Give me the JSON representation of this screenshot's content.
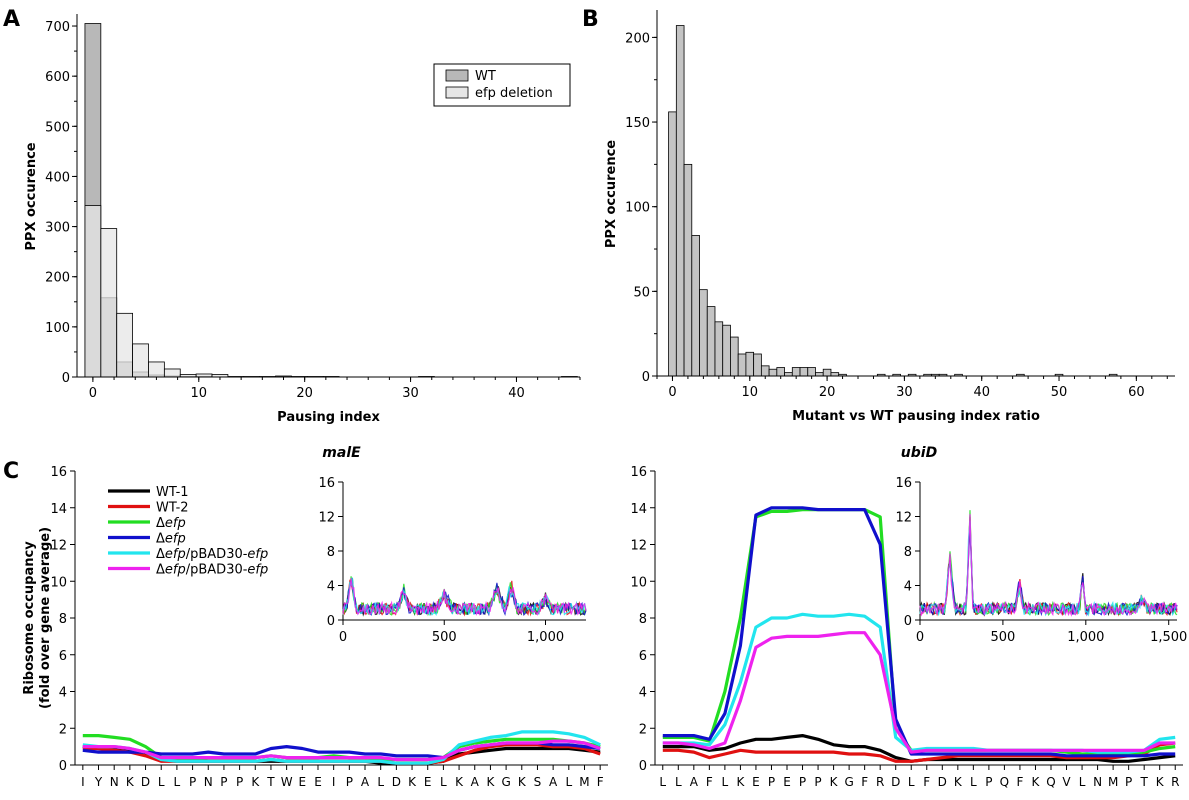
{
  "panel_labels": {
    "a": "A",
    "b": "B",
    "c": "C"
  },
  "chart_data": [
    {
      "id": "A",
      "type": "bar",
      "xlabel": "Pausing index",
      "ylabel": "PPX occurence",
      "xlim": [
        -1.5,
        46
      ],
      "ylim": [
        0,
        720
      ],
      "xticks": [
        0,
        10,
        20,
        30,
        40
      ],
      "yticks": [
        0,
        100,
        200,
        300,
        400,
        500,
        600,
        700
      ],
      "legend_position": "top-right",
      "bin_width": 1.5,
      "series": [
        {
          "name": "WT",
          "color": "#b8b8b8",
          "bins": [
            [
              -0.75,
              705
            ],
            [
              0.75,
              158
            ],
            [
              2.25,
              30
            ],
            [
              3.75,
              10
            ],
            [
              5.25,
              4
            ],
            [
              6.75,
              2
            ],
            [
              8.25,
              1
            ],
            [
              9.75,
              1
            ]
          ]
        },
        {
          "name": "efp deletion",
          "color": "#e6e6e6",
          "bins": [
            [
              -0.75,
              342
            ],
            [
              0.75,
              296
            ],
            [
              2.25,
              127
            ],
            [
              3.75,
              66
            ],
            [
              5.25,
              30
            ],
            [
              6.75,
              16
            ],
            [
              8.25,
              5
            ],
            [
              9.75,
              6
            ],
            [
              11.25,
              5
            ],
            [
              12.75,
              1
            ],
            [
              14.25,
              1
            ],
            [
              15.75,
              1
            ],
            [
              17.25,
              2
            ],
            [
              18.75,
              1
            ],
            [
              20.25,
              1
            ],
            [
              21.75,
              1
            ],
            [
              30.75,
              1
            ],
            [
              44.25,
              1
            ]
          ]
        }
      ]
    },
    {
      "id": "B",
      "type": "bar",
      "xlabel": "Mutant vs WT pausing index ratio",
      "ylabel": "PPX occurence",
      "xlim": [
        -2,
        65
      ],
      "ylim": [
        0,
        215
      ],
      "xticks": [
        0,
        10,
        20,
        30,
        40,
        50,
        60
      ],
      "yticks": [
        0,
        50,
        100,
        150,
        200
      ],
      "bin_width": 1,
      "series": [
        {
          "name": "",
          "color": "#c4c4c4",
          "bins": [
            [
              -0.5,
              156
            ],
            [
              0.5,
              207
            ],
            [
              1.5,
              125
            ],
            [
              2.5,
              83
            ],
            [
              3.5,
              51
            ],
            [
              4.5,
              41
            ],
            [
              5.5,
              32
            ],
            [
              6.5,
              30
            ],
            [
              7.5,
              23
            ],
            [
              8.5,
              13
            ],
            [
              9.5,
              14
            ],
            [
              10.5,
              13
            ],
            [
              11.5,
              6
            ],
            [
              12.5,
              4
            ],
            [
              13.5,
              5
            ],
            [
              14.5,
              2
            ],
            [
              15.5,
              5
            ],
            [
              16.5,
              5
            ],
            [
              17.5,
              5
            ],
            [
              18.5,
              2
            ],
            [
              19.5,
              4
            ],
            [
              20.5,
              2
            ],
            [
              21.5,
              1
            ],
            [
              26.5,
              1
            ],
            [
              28.5,
              1
            ],
            [
              30.5,
              1
            ],
            [
              32.5,
              1
            ],
            [
              33.5,
              1
            ],
            [
              34.5,
              1
            ],
            [
              36.5,
              1
            ],
            [
              44.5,
              1
            ],
            [
              49.5,
              1
            ],
            [
              56.5,
              1
            ]
          ]
        }
      ]
    },
    {
      "id": "C-malE",
      "type": "line",
      "title": "malE",
      "ylabel": "Ribosome occupancy\n(fold over gene average)",
      "ylim": [
        0,
        16
      ],
      "yticks": [
        0,
        2,
        4,
        6,
        8,
        10,
        12,
        14,
        16
      ],
      "categories": [
        "I",
        "Y",
        "N",
        "K",
        "D",
        "L",
        "L",
        "P",
        "N",
        "P",
        "P",
        "K",
        "T",
        "W",
        "E",
        "E",
        "I",
        "P",
        "A",
        "L",
        "D",
        "K",
        "E",
        "L",
        "K",
        "A",
        "K",
        "G",
        "K",
        "S",
        "A",
        "L",
        "M",
        "F"
      ],
      "series": [
        {
          "name": "WT-1",
          "color": "#000000",
          "values": [
            1.0,
            0.9,
            0.9,
            0.8,
            0.6,
            0.3,
            0.2,
            0.2,
            0.2,
            0.2,
            0.2,
            0.2,
            0.2,
            0.2,
            0.2,
            0.2,
            0.2,
            0.2,
            0.2,
            0.1,
            0.1,
            0.1,
            0.1,
            0.2,
            0.6,
            0.7,
            0.8,
            0.9,
            0.9,
            0.9,
            0.9,
            0.9,
            0.8,
            0.7
          ]
        },
        {
          "name": "WT-2",
          "color": "#e01010",
          "values": [
            0.9,
            0.9,
            0.8,
            0.7,
            0.5,
            0.2,
            0.2,
            0.2,
            0.2,
            0.2,
            0.2,
            0.2,
            0.3,
            0.2,
            0.2,
            0.2,
            0.2,
            0.2,
            0.2,
            0.2,
            0.1,
            0.1,
            0.1,
            0.2,
            0.5,
            0.8,
            1.0,
            1.1,
            1.1,
            1.1,
            1.0,
            1.0,
            0.9,
            0.6
          ]
        },
        {
          "name": "Δefp",
          "color": "#22dd22",
          "values": [
            1.6,
            1.6,
            1.5,
            1.4,
            1.0,
            0.4,
            0.3,
            0.3,
            0.4,
            0.4,
            0.4,
            0.4,
            0.5,
            0.4,
            0.4,
            0.4,
            0.5,
            0.4,
            0.4,
            0.3,
            0.3,
            0.3,
            0.3,
            0.4,
            1.0,
            1.2,
            1.3,
            1.4,
            1.4,
            1.4,
            1.4,
            1.3,
            1.2,
            1.0
          ]
        },
        {
          "name": "Δefp",
          "color": "#1010cc",
          "values": [
            0.8,
            0.7,
            0.7,
            0.7,
            0.7,
            0.6,
            0.6,
            0.6,
            0.7,
            0.6,
            0.6,
            0.6,
            0.9,
            1.0,
            0.9,
            0.7,
            0.7,
            0.7,
            0.6,
            0.6,
            0.5,
            0.5,
            0.5,
            0.4,
            0.8,
            1.0,
            1.1,
            1.2,
            1.2,
            1.2,
            1.1,
            1.1,
            1.0,
            0.9
          ]
        },
        {
          "name": "Δefp/pBAD30-efp",
          "color": "#22e5ee",
          "values": [
            1.1,
            1.0,
            1.0,
            0.9,
            0.7,
            0.3,
            0.2,
            0.2,
            0.2,
            0.2,
            0.2,
            0.2,
            0.3,
            0.2,
            0.2,
            0.2,
            0.2,
            0.2,
            0.2,
            0.2,
            0.1,
            0.1,
            0.1,
            0.3,
            1.1,
            1.3,
            1.5,
            1.6,
            1.8,
            1.8,
            1.8,
            1.7,
            1.5,
            1.1
          ]
        },
        {
          "name": "Δefp/pBAD30-efp",
          "color": "#ee22ee",
          "values": [
            1.0,
            1.0,
            1.0,
            0.9,
            0.7,
            0.4,
            0.4,
            0.4,
            0.4,
            0.4,
            0.4,
            0.4,
            0.5,
            0.4,
            0.4,
            0.4,
            0.4,
            0.4,
            0.4,
            0.4,
            0.3,
            0.3,
            0.3,
            0.4,
            0.8,
            1.0,
            1.1,
            1.2,
            1.2,
            1.2,
            1.3,
            1.3,
            1.2,
            0.9
          ]
        }
      ],
      "inset": {
        "xlim": [
          0,
          1200
        ],
        "xticks": [
          0,
          500,
          1000
        ],
        "xtick_labels": [
          "0",
          "500",
          "1,000"
        ],
        "ylim": [
          0,
          16
        ],
        "yticks": [
          0,
          4,
          8,
          12,
          16
        ]
      }
    },
    {
      "id": "C-ubiD",
      "type": "line",
      "title": "ubiD",
      "ylim": [
        0,
        16
      ],
      "yticks": [
        0,
        2,
        4,
        6,
        8,
        10,
        12,
        14,
        16
      ],
      "categories": [
        "L",
        "L",
        "A",
        "F",
        "L",
        "K",
        "E",
        "P",
        "E",
        "P",
        "P",
        "K",
        "G",
        "F",
        "R",
        "D",
        "L",
        "F",
        "D",
        "K",
        "L",
        "P",
        "Q",
        "F",
        "K",
        "Q",
        "V",
        "L",
        "N",
        "M",
        "P",
        "T",
        "K",
        "R"
      ],
      "series": [
        {
          "name": "WT-1",
          "color": "#000000",
          "values": [
            1.0,
            1.0,
            1.0,
            0.8,
            0.9,
            1.2,
            1.4,
            1.4,
            1.5,
            1.6,
            1.4,
            1.1,
            1.0,
            1.0,
            0.8,
            0.4,
            0.2,
            0.3,
            0.3,
            0.3,
            0.3,
            0.3,
            0.3,
            0.3,
            0.3,
            0.3,
            0.3,
            0.3,
            0.3,
            0.2,
            0.2,
            0.3,
            0.4,
            0.5
          ]
        },
        {
          "name": "WT-2",
          "color": "#e01010",
          "values": [
            0.8,
            0.8,
            0.7,
            0.4,
            0.6,
            0.8,
            0.7,
            0.7,
            0.7,
            0.7,
            0.7,
            0.7,
            0.6,
            0.6,
            0.5,
            0.2,
            0.2,
            0.3,
            0.4,
            0.5,
            0.5,
            0.5,
            0.5,
            0.5,
            0.5,
            0.5,
            0.4,
            0.4,
            0.4,
            0.4,
            0.5,
            0.6,
            1.1,
            1.2
          ]
        },
        {
          "name": "Δefp",
          "color": "#22dd22",
          "values": [
            1.5,
            1.5,
            1.5,
            1.3,
            4.0,
            8.0,
            13.5,
            13.8,
            13.8,
            13.9,
            13.9,
            13.9,
            13.9,
            13.9,
            13.5,
            2.0,
            0.8,
            0.8,
            0.8,
            0.8,
            0.8,
            0.8,
            0.8,
            0.8,
            0.8,
            0.8,
            0.7,
            0.6,
            0.6,
            0.6,
            0.6,
            0.7,
            0.9,
            1.0
          ]
        },
        {
          "name": "Δefp",
          "color": "#1010cc",
          "values": [
            1.6,
            1.6,
            1.6,
            1.4,
            2.8,
            6.5,
            13.6,
            14.0,
            14.0,
            14.0,
            13.9,
            13.9,
            13.9,
            13.9,
            12.0,
            2.5,
            0.6,
            0.6,
            0.6,
            0.6,
            0.6,
            0.6,
            0.6,
            0.6,
            0.6,
            0.6,
            0.5,
            0.5,
            0.5,
            0.5,
            0.5,
            0.5,
            0.6,
            0.6
          ]
        },
        {
          "name": "Δefp/pBAD30-efp",
          "color": "#22e5ee",
          "values": [
            1.2,
            1.2,
            1.2,
            1.1,
            2.2,
            4.5,
            7.5,
            8.0,
            8.0,
            8.2,
            8.1,
            8.1,
            8.2,
            8.1,
            7.5,
            1.5,
            0.8,
            0.9,
            0.9,
            0.9,
            0.9,
            0.8,
            0.8,
            0.8,
            0.8,
            0.8,
            0.8,
            0.8,
            0.7,
            0.7,
            0.7,
            0.8,
            1.4,
            1.5
          ]
        },
        {
          "name": "Δefp/pBAD30-efp",
          "color": "#ee22ee",
          "values": [
            1.2,
            1.2,
            1.1,
            0.9,
            1.2,
            3.5,
            6.4,
            6.9,
            7.0,
            7.0,
            7.0,
            7.1,
            7.2,
            7.2,
            6.0,
            2.0,
            0.7,
            0.8,
            0.8,
            0.8,
            0.8,
            0.8,
            0.8,
            0.8,
            0.8,
            0.8,
            0.8,
            0.8,
            0.8,
            0.8,
            0.8,
            0.8,
            1.2,
            1.2
          ]
        }
      ],
      "inset": {
        "xlim": [
          0,
          1550
        ],
        "xticks": [
          0,
          500,
          1000,
          1500
        ],
        "xtick_labels": [
          "0",
          "500",
          "1,000",
          "1,500"
        ],
        "ylim": [
          0,
          16
        ],
        "yticks": [
          0,
          4,
          8,
          12,
          16
        ]
      }
    }
  ]
}
